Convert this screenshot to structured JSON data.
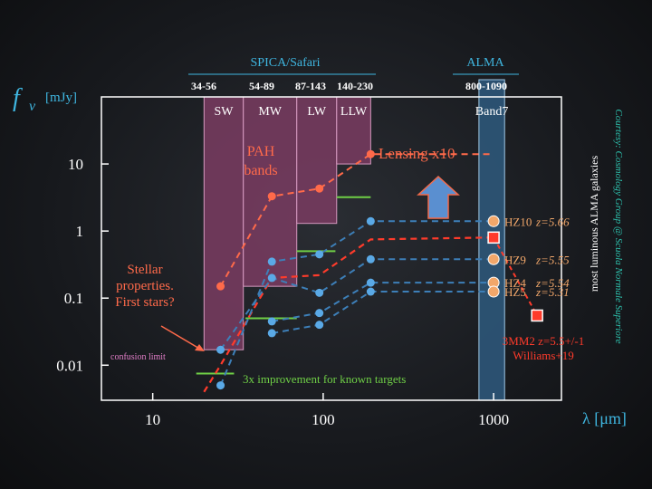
{
  "colors": {
    "axis": "#ffffff",
    "cyan": "#3fb6e0",
    "band_fill": "#7a3c62",
    "band_stroke": "#d69ac0",
    "alma_fill": "#2e5779",
    "alma_stroke": "#9fc8e6",
    "red": "#ff3b2b",
    "salmon": "#ff6a4a",
    "blue_dash": "#3d7fb8",
    "blue_dot": "#5aa9e6",
    "green": "#6fcf46",
    "orange_dot": "#f2a76a",
    "orange_text": "#f2a76a",
    "pink_text": "#e27ec8",
    "arrow_fill": "#5a8fd0",
    "arrow_stroke": "#f26a4a",
    "courtesy": "#2ec4b0"
  },
  "header": {
    "spica_title": "SPICA/Safari",
    "alma_title": "ALMA",
    "spica_ranges": [
      "34-56",
      "54-89",
      "87-143",
      "140-230"
    ],
    "alma_range": "800-1090"
  },
  "bands": [
    "SW",
    "MW",
    "LW",
    "LLW"
  ],
  "alma_band": "Band7",
  "annotations": {
    "pah": [
      "PAH",
      "bands"
    ],
    "lensing": "Lensing x10",
    "stellar": [
      "Stellar",
      "properties.",
      "First stars?"
    ],
    "confusion": "confusion limit",
    "improvement": "3x improvement for known targets",
    "vertical": "most luminous ALMA galaxies",
    "courtesy": "Courtesy: Cosmology Group @ Scuola Normale Superiore"
  },
  "chart_data": {
    "type": "line",
    "x_log": true,
    "y_log": true,
    "xlim": [
      5,
      2500
    ],
    "ylim": [
      0.003,
      100
    ],
    "ylabel_symbol": "f",
    "ylabel_sub": "ν",
    "ylabel_unit": "[mJy]",
    "xlabel": "λ [μm]",
    "x_ticks": [
      {
        "value": 10,
        "label": "10"
      },
      {
        "value": 100,
        "label": "100"
      },
      {
        "value": 1000,
        "label": "1000"
      }
    ],
    "y_ticks": [
      {
        "value": 10,
        "label": "10"
      },
      {
        "value": 1,
        "label": "1"
      },
      {
        "value": 0.1,
        "label": "0.1"
      },
      {
        "value": 0.01,
        "label": "0.01"
      }
    ],
    "band_regions": [
      {
        "name": "SW",
        "x": [
          20,
          34
        ],
        "y_bottom": 0.017
      },
      {
        "name": "MW",
        "x": [
          34,
          70
        ],
        "y_bottom": 0.15
      },
      {
        "name": "LW",
        "x": [
          70,
          120
        ],
        "y_bottom": 1.3
      },
      {
        "name": "LLW",
        "x": [
          120,
          190
        ],
        "y_bottom": 10
      }
    ],
    "alma_region": {
      "x": [
        820,
        1160
      ]
    },
    "sensitivity_lines": [
      {
        "x": [
          18,
          30
        ],
        "y": 0.0075
      },
      {
        "x": [
          35,
          70
        ],
        "y": 0.05
      },
      {
        "x": [
          70,
          118
        ],
        "y": 0.5
      },
      {
        "x": [
          120,
          190
        ],
        "y": 3.2
      }
    ],
    "series": [
      {
        "name": "",
        "style": "red",
        "x": [
          20,
          25,
          50,
          95,
          190,
          960
        ],
        "y": [
          0.004,
          0.01,
          0.2,
          0.22,
          0.75,
          0.8
        ]
      },
      {
        "name": "",
        "style": "salmon",
        "x": [
          25,
          50,
          95,
          190,
          960
        ],
        "y": [
          0.15,
          3.3,
          4.3,
          14,
          14
        ],
        "markers": [
          25,
          50,
          95,
          190
        ]
      },
      {
        "name": "",
        "style": "blue",
        "x": [
          25,
          50,
          95,
          190,
          960
        ],
        "y": [
          0.005,
          0.35,
          0.45,
          1.4,
          1.4
        ],
        "markers": [
          25,
          50,
          95,
          190
        ]
      },
      {
        "name": "",
        "style": "blue",
        "x": [
          25,
          50,
          95,
          190,
          960
        ],
        "y": [
          0.017,
          0.2,
          0.12,
          0.38,
          0.38
        ],
        "markers": [
          25,
          50,
          95,
          190
        ]
      },
      {
        "name": "",
        "style": "blue",
        "x": [
          50,
          95,
          190,
          960
        ],
        "y": [
          0.045,
          0.06,
          0.17,
          0.17
        ],
        "markers": [
          50,
          95,
          190
        ]
      },
      {
        "name": "",
        "style": "blue",
        "x": [
          50,
          95,
          190,
          960
        ],
        "y": [
          0.03,
          0.04,
          0.125,
          0.125
        ],
        "markers": [
          50,
          95,
          190
        ]
      }
    ],
    "alma_points": [
      {
        "label": "HZ10",
        "z": "z=5.66",
        "x": 1000,
        "y": 1.4
      },
      {
        "label": "HZ9",
        "z": "z=5.55",
        "x": 1000,
        "y": 0.38
      },
      {
        "label": "HZ4",
        "z": "z=5.54",
        "x": 1000,
        "y": 0.17
      },
      {
        "label": "HZ5",
        "z": "z=5.31",
        "x": 1000,
        "y": 0.125
      }
    ],
    "mm2": {
      "label": "3MM2 z=5.5+/-1",
      "ref": "Williams+19",
      "x": 1000,
      "y": 0.8,
      "x2": 1800,
      "y2": 0.055
    }
  }
}
